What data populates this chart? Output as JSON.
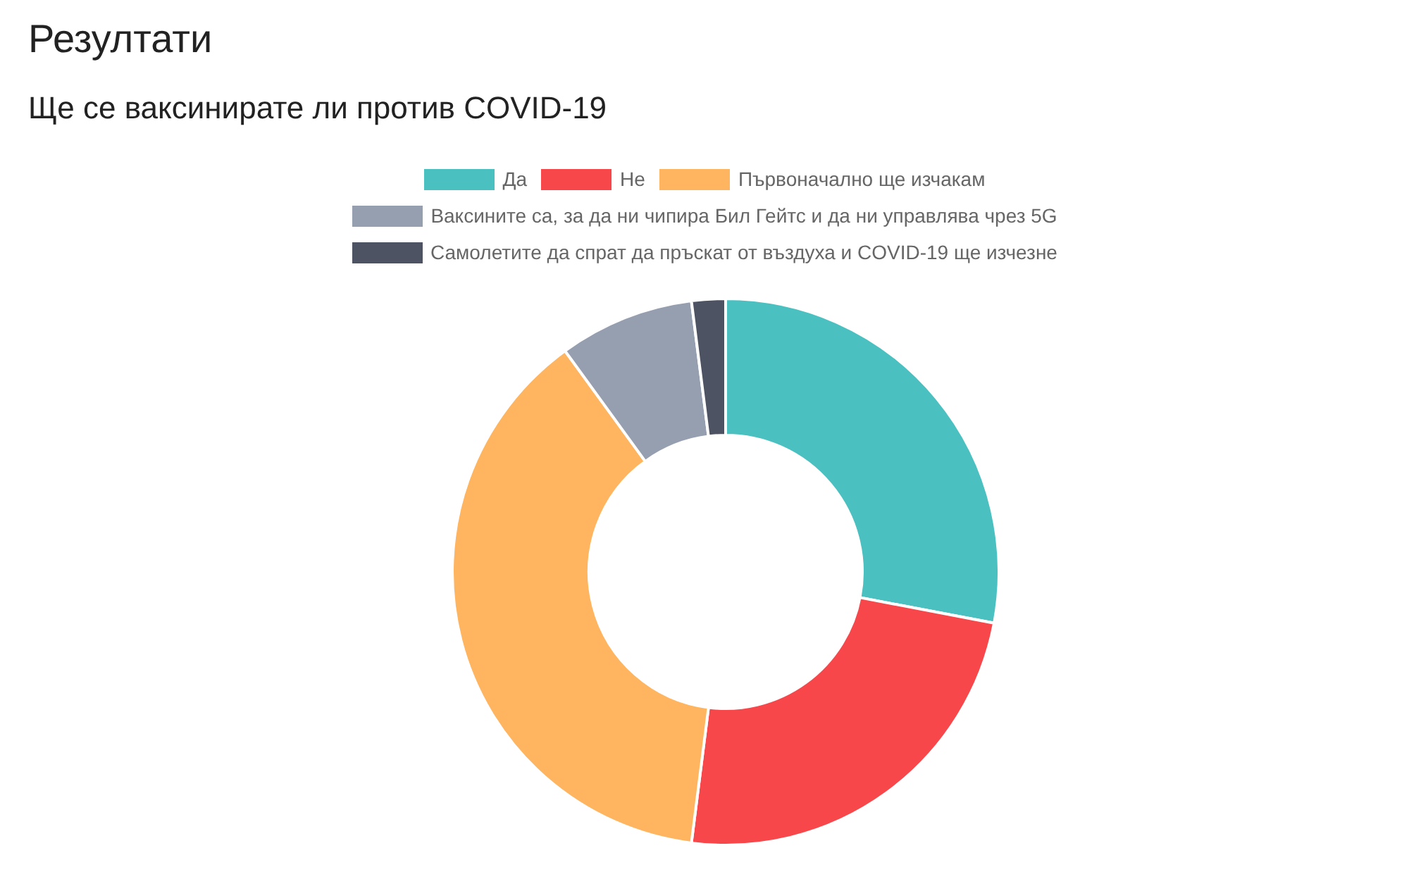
{
  "chart_data": {
    "type": "donut",
    "title": "Резултати",
    "subtitle": "Ще се ваксинирате ли против COVID-19",
    "categories": [
      "Да",
      "Не",
      "Първоначално ще изчакам",
      "Ваксините са, за да ни чипира Бил Гейтс и да ни управлява чрез 5G",
      "Самолетите да спрат да пръскат от въздуха и COVID-19 ще изчезне"
    ],
    "values": [
      28,
      24,
      38,
      8,
      2
    ],
    "colors": [
      "#4bc0c0",
      "#f7474b",
      "#ffb45f",
      "#969fb0",
      "#4d5362"
    ],
    "legend": "top"
  }
}
